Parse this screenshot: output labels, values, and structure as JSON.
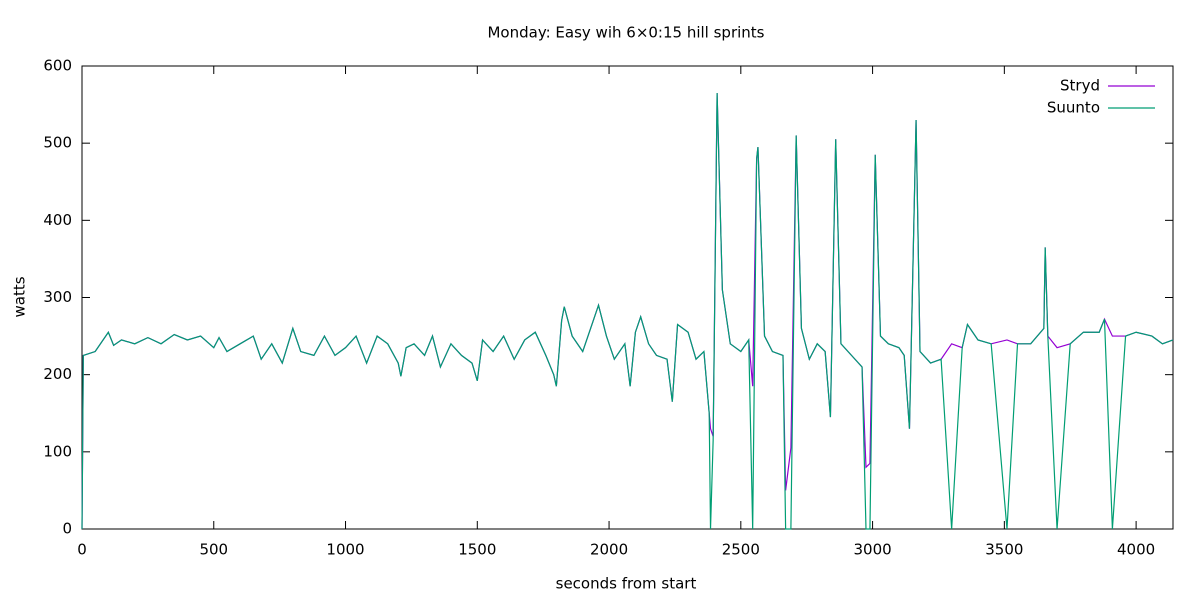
{
  "chart_data": {
    "type": "line",
    "title": "Monday: Easy wih 6×0:15 hill sprints",
    "xlabel": "seconds from start",
    "ylabel": "watts",
    "xlim": [
      0,
      4140
    ],
    "ylim": [
      0,
      600
    ],
    "xticks": [
      0,
      500,
      1000,
      1500,
      2000,
      2500,
      3000,
      3500,
      4000
    ],
    "yticks": [
      0,
      100,
      200,
      300,
      400,
      500,
      600
    ],
    "legend": "top-right",
    "x": [
      0,
      5,
      50,
      100,
      120,
      150,
      200,
      250,
      300,
      350,
      400,
      450,
      500,
      520,
      550,
      600,
      650,
      680,
      720,
      760,
      800,
      830,
      880,
      920,
      960,
      1000,
      1040,
      1080,
      1120,
      1160,
      1200,
      1210,
      1230,
      1260,
      1300,
      1330,
      1360,
      1400,
      1440,
      1480,
      1500,
      1520,
      1560,
      1600,
      1640,
      1680,
      1720,
      1760,
      1790,
      1800,
      1820,
      1830,
      1860,
      1900,
      1940,
      1960,
      1990,
      2020,
      2060,
      2080,
      2100,
      2120,
      2150,
      2180,
      2220,
      2240,
      2260,
      2300,
      2330,
      2360,
      2380,
      2385,
      2395,
      2410,
      2430,
      2460,
      2500,
      2530,
      2545,
      2560,
      2565,
      2590,
      2620,
      2660,
      2670,
      2690,
      2710,
      2730,
      2760,
      2790,
      2820,
      2840,
      2860,
      2880,
      2920,
      2960,
      2975,
      2990,
      3010,
      3030,
      3060,
      3100,
      3120,
      3140,
      3165,
      3180,
      3220,
      3260,
      3300,
      3340,
      3360,
      3400,
      3450,
      3510,
      3550,
      3600,
      3650,
      3655,
      3665,
      3700,
      3750,
      3800,
      3860,
      3880,
      3910,
      3960,
      4000,
      4060,
      4100,
      4140
    ],
    "series": [
      {
        "name": "Stryd",
        "color": "#9400d3",
        "values": [
          0,
          225,
          230,
          255,
          238,
          245,
          240,
          248,
          240,
          252,
          245,
          250,
          235,
          248,
          230,
          240,
          250,
          220,
          240,
          215,
          260,
          230,
          225,
          250,
          225,
          235,
          250,
          215,
          250,
          240,
          215,
          198,
          235,
          240,
          225,
          250,
          210,
          240,
          225,
          215,
          192,
          245,
          230,
          250,
          220,
          245,
          255,
          225,
          200,
          185,
          270,
          288,
          250,
          230,
          270,
          290,
          250,
          220,
          240,
          185,
          255,
          275,
          240,
          225,
          220,
          165,
          265,
          255,
          220,
          230,
          150,
          130,
          120,
          565,
          310,
          240,
          230,
          245,
          185,
          480,
          495,
          250,
          230,
          225,
          50,
          105,
          510,
          260,
          220,
          240,
          230,
          145,
          505,
          240,
          225,
          210,
          80,
          85,
          485,
          250,
          240,
          235,
          225,
          130,
          530,
          230,
          215,
          220,
          240,
          235,
          265,
          245,
          240,
          245,
          240,
          240,
          260,
          365,
          250,
          235,
          240,
          255,
          255,
          272,
          250,
          250,
          255,
          250,
          240,
          245
        ]
      },
      {
        "name": "Suunto",
        "color": "#009e73",
        "values": [
          0,
          225,
          230,
          255,
          238,
          245,
          240,
          248,
          240,
          252,
          245,
          250,
          235,
          248,
          230,
          240,
          250,
          220,
          240,
          215,
          260,
          230,
          225,
          250,
          225,
          235,
          250,
          215,
          250,
          240,
          215,
          198,
          235,
          240,
          225,
          250,
          210,
          240,
          225,
          215,
          192,
          245,
          230,
          250,
          220,
          245,
          255,
          225,
          200,
          185,
          270,
          288,
          250,
          230,
          270,
          290,
          250,
          220,
          240,
          185,
          255,
          275,
          240,
          225,
          220,
          165,
          265,
          255,
          220,
          230,
          150,
          0,
          115,
          565,
          310,
          240,
          230,
          245,
          0,
          480,
          495,
          250,
          230,
          225,
          0,
          0,
          510,
          260,
          220,
          240,
          230,
          145,
          505,
          240,
          225,
          210,
          0,
          0,
          485,
          250,
          240,
          235,
          225,
          130,
          530,
          230,
          215,
          220,
          0,
          235,
          265,
          245,
          240,
          0,
          240,
          240,
          260,
          365,
          250,
          0,
          240,
          255,
          255,
          272,
          0,
          250,
          255,
          250,
          240,
          245
        ]
      }
    ]
  }
}
